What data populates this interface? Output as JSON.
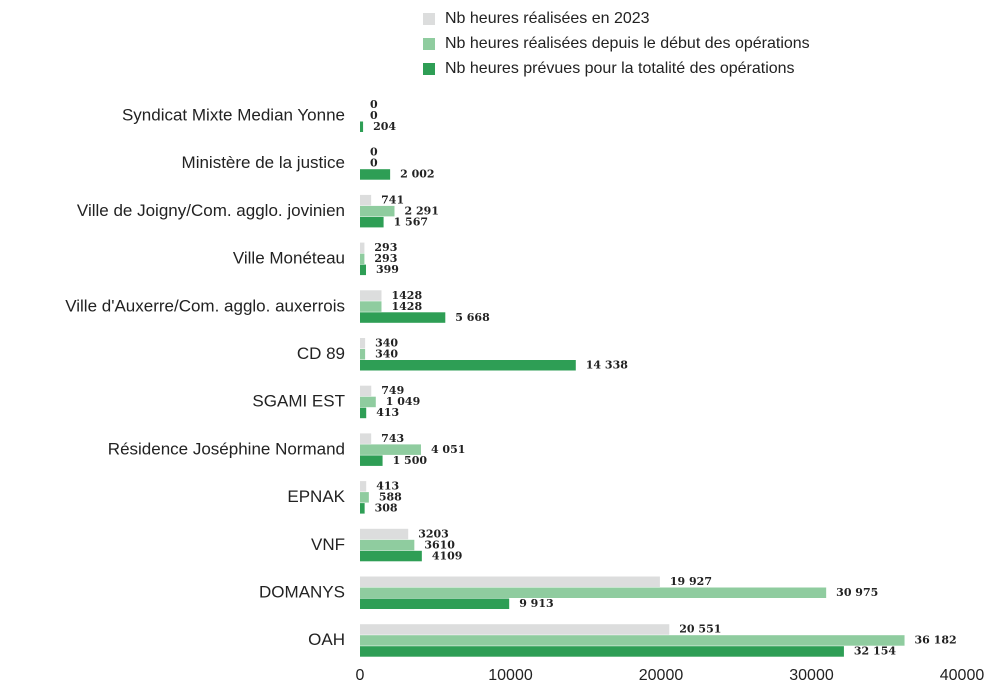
{
  "chart_data": {
    "type": "hbar",
    "categories": [
      "Syndicat Mixte Median Yonne",
      "Ministère de la justice",
      "Ville de Joigny/Com. agglo. jovinien",
      "Ville Monéteau",
      "Ville d'Auxerre/Com. agglo. auxerrois",
      "CD 89",
      "SGAMI EST",
      "Résidence Joséphine Normand",
      "EPNAK",
      "VNF",
      "DOMANYS",
      "OAH"
    ],
    "series": [
      {
        "name": "Nb heures réalisées en 2023",
        "color": "#dcdddd",
        "values": [
          0,
          0,
          741,
          293,
          1428,
          340,
          749,
          743,
          413,
          3203,
          19927,
          20551
        ],
        "value_labels": [
          "0",
          "0",
          "741",
          "293",
          "1428",
          "340",
          "749",
          "743",
          "413",
          "3203",
          "19 927",
          "20 551"
        ]
      },
      {
        "name": "Nb heures réalisées depuis le début des opérations",
        "color": "#8fcc9f",
        "values": [
          0,
          0,
          2291,
          293,
          1428,
          340,
          1049,
          4051,
          588,
          3610,
          30975,
          36182
        ],
        "value_labels": [
          "0",
          "0",
          "2 291",
          "293",
          "1428",
          "340",
          "1 049",
          "4 051",
          "588",
          "3610",
          "30 975",
          "36 182"
        ]
      },
      {
        "name": "Nb heures prévues pour la totalité des opérations",
        "color": "#2e9e55",
        "values": [
          204,
          2002,
          1567,
          399,
          5668,
          14338,
          413,
          1500,
          308,
          4109,
          9913,
          32154
        ],
        "value_labels": [
          "204",
          "2 002",
          "1 567",
          "399",
          "5 668",
          "14 338",
          "413",
          "1 500",
          "308",
          "4109",
          "9 913",
          "32 154"
        ]
      }
    ],
    "xlim": [
      0,
      40000
    ],
    "xticks": [
      0,
      10000,
      20000,
      30000,
      40000
    ]
  }
}
